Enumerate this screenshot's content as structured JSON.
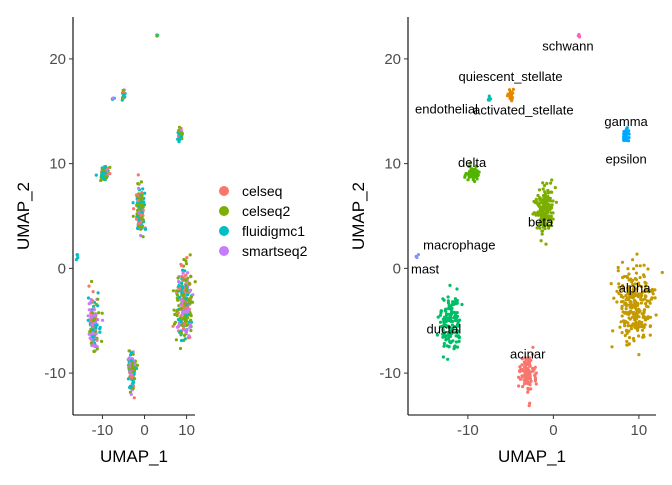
{
  "chart_data": [
    {
      "type": "scatter",
      "xlabel": "UMAP_1",
      "ylabel": "UMAP_2",
      "xlim": [
        -17,
        12
      ],
      "ylim": [
        -14,
        24
      ],
      "xticks": [
        -10,
        0,
        10
      ],
      "yticks": [
        -10,
        0,
        10,
        20
      ],
      "grid": false,
      "legend": "right",
      "series": [
        {
          "name": "celseq",
          "color": "#F8766D"
        },
        {
          "name": "celseq2",
          "color": "#7CAE00"
        },
        {
          "name": "fluidigmc1",
          "color": "#00BFC4"
        },
        {
          "name": "smartseq2",
          "color": "#C77CFF"
        }
      ],
      "clusters": [
        {
          "x": 9.5,
          "y": -3.5,
          "spread": [
            1.8,
            3.2
          ],
          "count": 260,
          "mix": [
            0.25,
            0.4,
            0.2,
            0.15
          ]
        },
        {
          "x": -1.0,
          "y": 5.5,
          "spread": [
            0.9,
            2.0
          ],
          "count": 170,
          "mix": [
            0.15,
            0.3,
            0.45,
            0.1
          ]
        },
        {
          "x": -12.0,
          "y": -5.3,
          "spread": [
            1.2,
            2.3
          ],
          "count": 140,
          "mix": [
            0.1,
            0.3,
            0.2,
            0.4
          ]
        },
        {
          "x": -3.0,
          "y": -10.0,
          "spread": [
            0.8,
            1.6
          ],
          "count": 100,
          "mix": [
            0.2,
            0.3,
            0.2,
            0.3
          ]
        },
        {
          "x": -9.5,
          "y": 9.0,
          "spread": [
            0.8,
            0.7
          ],
          "count": 70,
          "mix": [
            0.2,
            0.4,
            0.2,
            0.2
          ]
        },
        {
          "x": 8.5,
          "y": 12.7,
          "spread": [
            0.4,
            0.6
          ],
          "count": 35,
          "mix": [
            0.2,
            0.3,
            0.3,
            0.2
          ]
        },
        {
          "x": -5.0,
          "y": 16.5,
          "spread": [
            0.3,
            0.5
          ],
          "count": 22,
          "mix": [
            0.2,
            0.3,
            0.3,
            0.2
          ]
        },
        {
          "x": -7.5,
          "y": 16.2,
          "spread": [
            0.2,
            0.2
          ],
          "count": 6,
          "mix": [
            0.1,
            0.1,
            0.7,
            0.1
          ]
        },
        {
          "x": 3.0,
          "y": 22.2,
          "spread": [
            0.2,
            0.2
          ],
          "count": 4,
          "mix": [
            0.1,
            0.1,
            0.7,
            0.1
          ]
        },
        {
          "x": -16.0,
          "y": 1.2,
          "spread": [
            0.2,
            0.3
          ],
          "count": 4,
          "mix": [
            0.1,
            0.1,
            0.7,
            0.1
          ]
        }
      ]
    },
    {
      "type": "scatter",
      "xlabel": "UMAP_1",
      "ylabel": "UMAP_2",
      "xlim": [
        -17,
        12
      ],
      "ylim": [
        -14,
        24
      ],
      "xticks": [
        -10,
        0,
        10
      ],
      "yticks": [
        -10,
        0,
        10,
        20
      ],
      "grid": false,
      "clusters": [
        {
          "label": "alpha",
          "x": 9.5,
          "y": -3.5,
          "spread": [
            1.8,
            3.2
          ],
          "count": 260,
          "color": "#C49A00",
          "label_x": 9.5,
          "label_y": -2.3
        },
        {
          "label": "beta",
          "x": -1.0,
          "y": 5.5,
          "spread": [
            0.9,
            2.0
          ],
          "count": 170,
          "color": "#7CAE00",
          "label_x": -1.5,
          "label_y": 4.0
        },
        {
          "label": "ductal",
          "x": -12.0,
          "y": -5.3,
          "spread": [
            1.2,
            2.3
          ],
          "count": 140,
          "color": "#00BE67",
          "label_x": -12.8,
          "label_y": -6.2
        },
        {
          "label": "acinar",
          "x": -3.0,
          "y": -10.0,
          "spread": [
            0.8,
            1.6
          ],
          "count": 100,
          "color": "#F8766D",
          "label_x": -3.0,
          "label_y": -8.6
        },
        {
          "label": "delta",
          "x": -9.5,
          "y": 9.0,
          "spread": [
            0.8,
            0.7
          ],
          "count": 70,
          "color": "#53B400",
          "label_x": -9.5,
          "label_y": 9.7
        },
        {
          "label": "gamma",
          "x": 8.5,
          "y": 12.7,
          "spread": [
            0.4,
            0.6
          ],
          "count": 35,
          "color": "#00A9FF",
          "label_x": 8.5,
          "label_y": 13.6
        },
        {
          "label": "activated_stellate",
          "x": -5.0,
          "y": 16.5,
          "spread": [
            0.3,
            0.5
          ],
          "count": 22,
          "color": "#E58700",
          "label_x": -3.5,
          "label_y": 14.7
        },
        {
          "label": "endothelial",
          "x": -7.5,
          "y": 16.2,
          "spread": [
            0.2,
            0.2
          ],
          "count": 6,
          "color": "#00C0AF",
          "label_x": -12.5,
          "label_y": 14.8
        },
        {
          "label": "schwann",
          "x": 3.0,
          "y": 22.2,
          "spread": [
            0.2,
            0.2
          ],
          "count": 4,
          "color": "#FF61C3",
          "label_x": 1.7,
          "label_y": 20.8
        },
        {
          "label": "macrophage",
          "x": -16.0,
          "y": 1.2,
          "spread": [
            0.2,
            0.3
          ],
          "count": 4,
          "color": "#8494FF",
          "label_x": -11.0,
          "label_y": 1.8
        },
        {
          "label": "quiescent_stellate",
          "x": -5.0,
          "y": 17.5,
          "spread": [
            0.2,
            0.2
          ],
          "count": 0,
          "color": "#00BF7D",
          "label_x": -5.0,
          "label_y": 17.9
        },
        {
          "label": "epsilon",
          "x": 8.5,
          "y": 10.5,
          "spread": [
            0.2,
            0.2
          ],
          "count": 0,
          "color": "#00B0F6",
          "label_x": 8.5,
          "label_y": 10.0
        },
        {
          "label": "mast",
          "x": -16.0,
          "y": -0.5,
          "spread": [
            0.2,
            0.2
          ],
          "count": 0,
          "color": "#ED68ED",
          "label_x": -15.0,
          "label_y": -0.5
        }
      ]
    }
  ]
}
